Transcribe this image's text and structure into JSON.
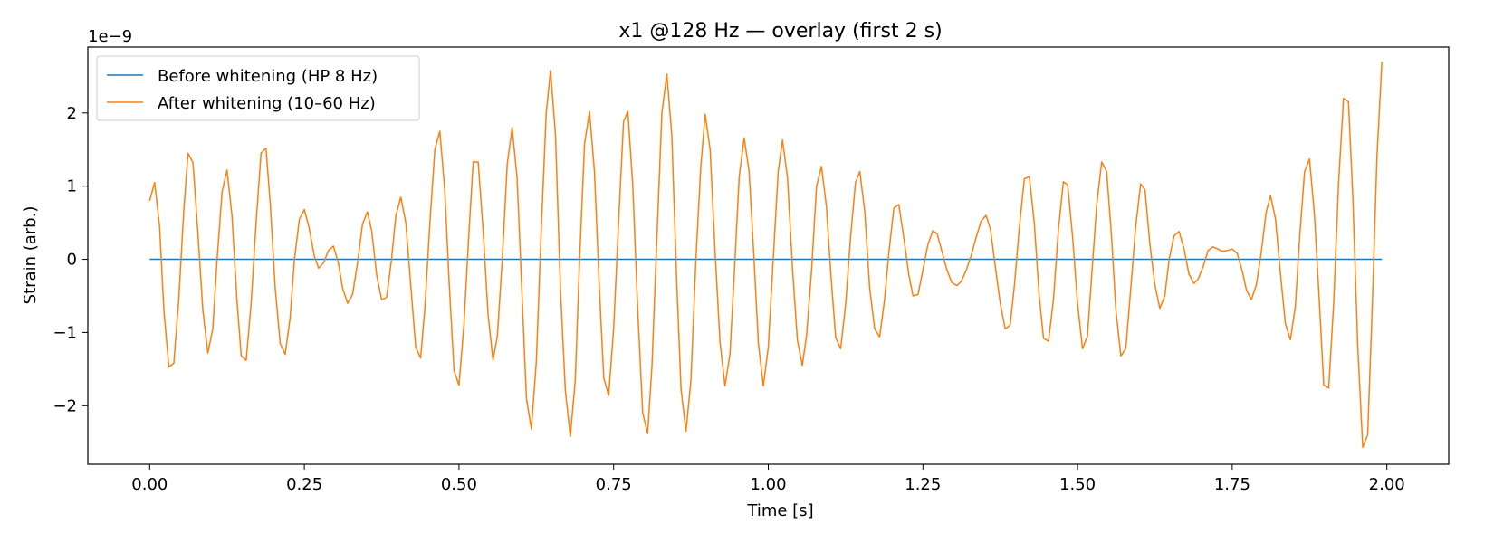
{
  "chart_data": {
    "type": "line",
    "title": "x1 @128 Hz — overlay (first 2 s)",
    "xlabel": "Time [s]",
    "ylabel": "Strain (arb.)",
    "y_offset_label": "1e−9",
    "xlim": [
      -0.1,
      2.1
    ],
    "ylim": [
      -2.8,
      2.9
    ],
    "y_scale_note": "values in units of 1e-9",
    "x_ticks": [
      0.0,
      0.25,
      0.5,
      0.75,
      1.0,
      1.25,
      1.5,
      1.75,
      2.0
    ],
    "x_tick_labels": [
      "0.00",
      "0.25",
      "0.50",
      "0.75",
      "1.00",
      "1.25",
      "1.50",
      "1.75",
      "2.00"
    ],
    "y_ticks": [
      -2,
      -1,
      0,
      1,
      2
    ],
    "y_tick_labels": [
      "−2",
      "−1",
      "0",
      "1",
      "2"
    ],
    "grid": false,
    "legend_position": "top-left",
    "series": [
      {
        "name": "Before whitening (HP 8 Hz)",
        "color": "#1f77b4",
        "x": [
          0.0,
          1.9922
        ],
        "y": [
          0.0,
          0.0
        ]
      },
      {
        "name": "After whitening (10–60 Hz)",
        "color": "#ff7f0e",
        "x": [
          0.0,
          0.008,
          0.016,
          0.023,
          0.031,
          0.039,
          0.047,
          0.055,
          0.062,
          0.07,
          0.078,
          0.086,
          0.094,
          0.102,
          0.109,
          0.117,
          0.125,
          0.133,
          0.141,
          0.148,
          0.156,
          0.164,
          0.172,
          0.18,
          0.188,
          0.195,
          0.203,
          0.211,
          0.219,
          0.227,
          0.234,
          0.242,
          0.25,
          0.258,
          0.266,
          0.273,
          0.281,
          0.289,
          0.297,
          0.305,
          0.312,
          0.32,
          0.328,
          0.336,
          0.344,
          0.352,
          0.359,
          0.367,
          0.375,
          0.383,
          0.391,
          0.398,
          0.406,
          0.414,
          0.422,
          0.43,
          0.438,
          0.445,
          0.453,
          0.461,
          0.469,
          0.477,
          0.484,
          0.492,
          0.5,
          0.508,
          0.516,
          0.523,
          0.531,
          0.539,
          0.547,
          0.555,
          0.562,
          0.57,
          0.578,
          0.586,
          0.594,
          0.602,
          0.609,
          0.617,
          0.625,
          0.633,
          0.641,
          0.648,
          0.656,
          0.664,
          0.672,
          0.68,
          0.688,
          0.695,
          0.703,
          0.711,
          0.719,
          0.727,
          0.734,
          0.742,
          0.75,
          0.758,
          0.766,
          0.773,
          0.781,
          0.789,
          0.797,
          0.805,
          0.812,
          0.82,
          0.828,
          0.836,
          0.844,
          0.852,
          0.859,
          0.867,
          0.875,
          0.883,
          0.891,
          0.898,
          0.906,
          0.914,
          0.922,
          0.93,
          0.938,
          0.945,
          0.953,
          0.961,
          0.969,
          0.977,
          0.984,
          0.992,
          1.0,
          1.008,
          1.016,
          1.023,
          1.031,
          1.039,
          1.047,
          1.055,
          1.062,
          1.07,
          1.078,
          1.086,
          1.094,
          1.102,
          1.109,
          1.117,
          1.125,
          1.133,
          1.141,
          1.148,
          1.156,
          1.164,
          1.172,
          1.18,
          1.188,
          1.195,
          1.203,
          1.211,
          1.219,
          1.227,
          1.234,
          1.242,
          1.25,
          1.258,
          1.266,
          1.273,
          1.281,
          1.289,
          1.297,
          1.305,
          1.312,
          1.32,
          1.328,
          1.336,
          1.344,
          1.352,
          1.359,
          1.367,
          1.375,
          1.383,
          1.391,
          1.398,
          1.406,
          1.414,
          1.422,
          1.43,
          1.438,
          1.445,
          1.453,
          1.461,
          1.469,
          1.477,
          1.484,
          1.492,
          1.5,
          1.508,
          1.516,
          1.523,
          1.531,
          1.539,
          1.547,
          1.555,
          1.562,
          1.57,
          1.578,
          1.586,
          1.594,
          1.602,
          1.609,
          1.617,
          1.625,
          1.633,
          1.641,
          1.648,
          1.656,
          1.664,
          1.672,
          1.68,
          1.688,
          1.695,
          1.703,
          1.711,
          1.719,
          1.727,
          1.734,
          1.742,
          1.75,
          1.758,
          1.766,
          1.773,
          1.781,
          1.789,
          1.797,
          1.805,
          1.812,
          1.82,
          1.828,
          1.836,
          1.844,
          1.852,
          1.859,
          1.867,
          1.875,
          1.883,
          1.891,
          1.898,
          1.906,
          1.914,
          1.922,
          1.93,
          1.938,
          1.945,
          1.953,
          1.961,
          1.969,
          1.977,
          1.984,
          1.992
        ],
        "y": [
          0.8,
          1.05,
          0.45,
          -0.7,
          -1.47,
          -1.42,
          -0.55,
          0.65,
          1.45,
          1.32,
          0.35,
          -0.7,
          -1.28,
          -0.95,
          0.0,
          0.92,
          1.22,
          0.6,
          -0.55,
          -1.32,
          -1.38,
          -0.6,
          0.5,
          1.45,
          1.52,
          0.75,
          -0.4,
          -1.15,
          -1.3,
          -0.8,
          0.0,
          0.55,
          0.68,
          0.42,
          0.05,
          -0.12,
          -0.05,
          0.12,
          0.18,
          -0.05,
          -0.4,
          -0.6,
          -0.48,
          -0.05,
          0.48,
          0.65,
          0.38,
          -0.22,
          -0.55,
          -0.52,
          0.0,
          0.6,
          0.85,
          0.5,
          -0.35,
          -1.2,
          -1.35,
          -0.65,
          0.5,
          1.5,
          1.75,
          0.95,
          -0.3,
          -1.52,
          -1.72,
          -0.9,
          0.35,
          1.33,
          1.33,
          0.4,
          -0.75,
          -1.38,
          -1.05,
          0.0,
          1.3,
          1.8,
          1.1,
          -0.5,
          -1.9,
          -2.32,
          -1.4,
          0.4,
          2.0,
          2.58,
          1.7,
          -0.4,
          -1.8,
          -2.42,
          -1.65,
          0.0,
          1.58,
          2.02,
          1.2,
          -0.4,
          -1.62,
          -1.86,
          -0.95,
          0.5,
          1.88,
          2.02,
          1.0,
          -0.7,
          -2.1,
          -2.38,
          -1.45,
          0.3,
          2.0,
          2.53,
          1.7,
          -0.3,
          -1.78,
          -2.35,
          -1.65,
          0.0,
          1.28,
          1.98,
          1.5,
          0.1,
          -1.13,
          -1.73,
          -1.3,
          -0.2,
          1.13,
          1.66,
          1.2,
          0.0,
          -1.15,
          -1.73,
          -1.2,
          0.0,
          1.2,
          1.63,
          1.12,
          -0.1,
          -1.1,
          -1.45,
          -1.03,
          -0.15,
          1.0,
          1.27,
          0.72,
          -0.3,
          -1.07,
          -1.22,
          -0.62,
          0.3,
          1.05,
          1.2,
          0.65,
          -0.4,
          -0.95,
          -1.06,
          -0.55,
          0.1,
          0.7,
          0.75,
          0.3,
          -0.2,
          -0.5,
          -0.48,
          -0.15,
          0.2,
          0.39,
          0.35,
          0.1,
          -0.15,
          -0.32,
          -0.36,
          -0.3,
          -0.15,
          0.05,
          0.3,
          0.52,
          0.6,
          0.42,
          -0.1,
          -0.6,
          -0.95,
          -0.9,
          -0.35,
          0.45,
          1.1,
          1.13,
          0.5,
          -0.5,
          -1.08,
          -1.12,
          -0.55,
          0.4,
          1.06,
          1.02,
          0.3,
          -0.6,
          -1.22,
          -1.05,
          -0.2,
          0.75,
          1.33,
          1.2,
          0.3,
          -0.7,
          -1.32,
          -1.22,
          -0.4,
          0.45,
          1.03,
          0.95,
          0.2,
          -0.35,
          -0.67,
          -0.5,
          0.0,
          0.32,
          0.38,
          0.15,
          -0.2,
          -0.33,
          -0.27,
          -0.1,
          0.12,
          0.17,
          0.14,
          0.11,
          0.12,
          0.14,
          0.08,
          -0.15,
          -0.42,
          -0.55,
          -0.35,
          0.1,
          0.65,
          0.87,
          0.55,
          -0.2,
          -0.88,
          -1.1,
          -0.65,
          0.3,
          1.2,
          1.37,
          0.6,
          -0.6,
          -1.72,
          -1.76,
          -0.6,
          1.05,
          2.2,
          2.15,
          0.85,
          -1.2,
          -2.57,
          -2.4,
          -0.5,
          1.4,
          2.7
        ]
      }
    ]
  }
}
